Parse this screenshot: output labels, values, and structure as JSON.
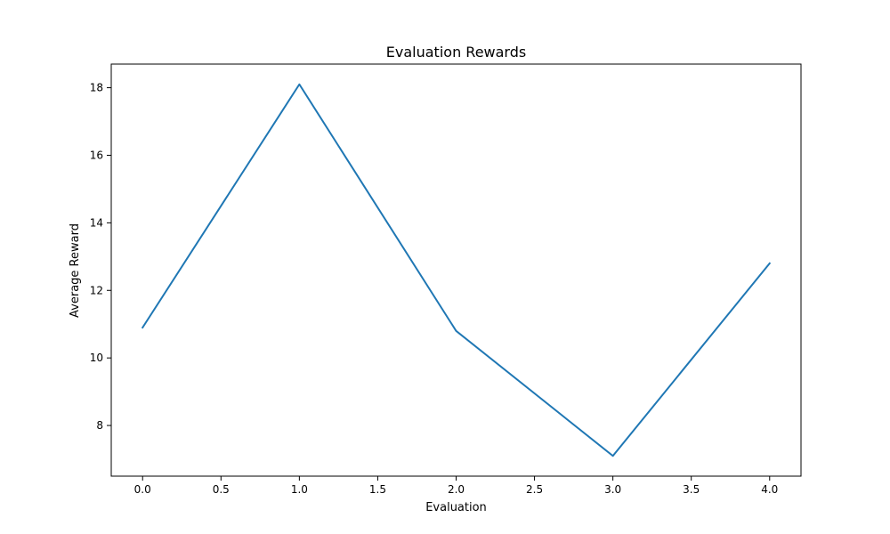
{
  "chart_data": {
    "type": "line",
    "title": "Evaluation Rewards",
    "xlabel": "Evaluation",
    "ylabel": "Average Reward",
    "x": [
      0,
      1,
      2,
      3,
      4
    ],
    "series": [
      {
        "values": [
          10.9,
          18.1,
          10.8,
          7.1,
          12.8
        ],
        "color": "#1f77b4"
      }
    ],
    "xlim": [
      -0.2,
      4.2
    ],
    "ylim": [
      6.5,
      18.7
    ],
    "xticks": [
      0.0,
      0.5,
      1.0,
      1.5,
      2.0,
      2.5,
      3.0,
      3.5,
      4.0
    ],
    "xtick_labels": [
      "0.0",
      "0.5",
      "1.0",
      "1.5",
      "2.0",
      "2.5",
      "3.0",
      "3.5",
      "4.0"
    ],
    "yticks": [
      8,
      10,
      12,
      14,
      16,
      18
    ],
    "ytick_labels": [
      "8",
      "10",
      "12",
      "14",
      "16",
      "18"
    ],
    "grid": false,
    "legend": false
  }
}
